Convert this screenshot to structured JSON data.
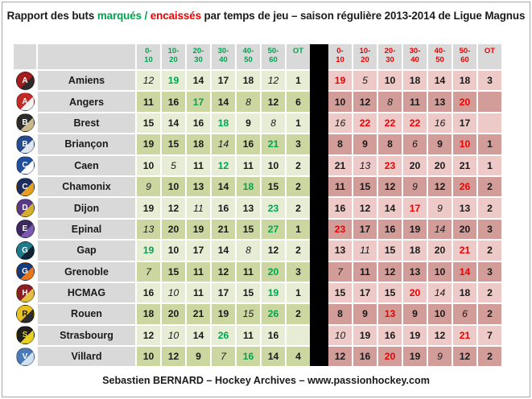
{
  "title": {
    "part1": "Rapport des buts ",
    "scored_word": "marqués /",
    "conceded_word": " encaissés",
    "part2": " par temps de jeu – saison régulière 2013-2014  de Ligue Magnus"
  },
  "colors": {
    "accent_green": "#00a550",
    "accent_red": "#f00000",
    "row_green_light": "#e7edd5",
    "row_green_dark": "#ccd6a1",
    "row_pink_light": "#edcac7",
    "row_pink_dark": "#d29d99",
    "header_gray": "#d9d9d9",
    "separator_black": "#000000"
  },
  "table": {
    "periods": [
      "0-10",
      "10-20",
      "20-30",
      "30-40",
      "40-50",
      "50-60",
      "OT"
    ],
    "teams": [
      {
        "id": "amiens",
        "name": "Amiens",
        "logo": {
          "initial": "A",
          "bg": "#a61c1c",
          "accent": "#2b2b2b",
          "fg": "#ffffff"
        },
        "scored": [
          "12",
          "19",
          "14",
          "17",
          "18",
          "12",
          "1"
        ],
        "scored_fmt": [
          "lo",
          "hi",
          "",
          "",
          "",
          "lo",
          ""
        ],
        "conceded": [
          "19",
          "5",
          "10",
          "18",
          "14",
          "18",
          "3"
        ],
        "conceded_fmt": [
          "hi",
          "lo",
          "",
          "",
          "",
          "",
          ""
        ]
      },
      {
        "id": "angers",
        "name": "Angers",
        "logo": {
          "initial": "A",
          "bg": "#c62828",
          "accent": "#f2f2f2",
          "fg": "#ffffff"
        },
        "scored": [
          "11",
          "16",
          "17",
          "14",
          "8",
          "12",
          "6"
        ],
        "scored_fmt": [
          "",
          "",
          "hi",
          "",
          "lo",
          "",
          ""
        ],
        "conceded": [
          "10",
          "12",
          "8",
          "11",
          "13",
          "20",
          ""
        ],
        "conceded_fmt": [
          "",
          "",
          "lo",
          "",
          "",
          "hi",
          ""
        ]
      },
      {
        "id": "brest",
        "name": "Brest",
        "logo": {
          "initial": "B",
          "bg": "#2b2b2b",
          "accent": "#c9b98a",
          "fg": "#ffffff"
        },
        "scored": [
          "15",
          "14",
          "16",
          "18",
          "9",
          "8",
          "1"
        ],
        "scored_fmt": [
          "",
          "",
          "",
          "hi",
          "",
          "lo",
          ""
        ],
        "conceded": [
          "16",
          "22",
          "22",
          "22",
          "16",
          "17",
          ""
        ],
        "conceded_fmt": [
          "lo",
          "hi",
          "hi",
          "hi",
          "lo",
          "",
          ""
        ]
      },
      {
        "id": "briancon",
        "name": "Briançon",
        "logo": {
          "initial": "B",
          "bg": "#274b8f",
          "accent": "#dfe6f2",
          "fg": "#ffffff"
        },
        "scored": [
          "19",
          "15",
          "18",
          "14",
          "16",
          "21",
          "3"
        ],
        "scored_fmt": [
          "",
          "",
          "",
          "lo",
          "",
          "hi",
          ""
        ],
        "conceded": [
          "8",
          "9",
          "8",
          "6",
          "9",
          "10",
          "1"
        ],
        "conceded_fmt": [
          "",
          "",
          "",
          "lo",
          "",
          "hi",
          ""
        ]
      },
      {
        "id": "caen",
        "name": "Caen",
        "logo": {
          "initial": "C",
          "bg": "#1f4f9e",
          "accent": "#ffffff",
          "fg": "#ffffff"
        },
        "scored": [
          "10",
          "5",
          "11",
          "12",
          "11",
          "10",
          "2"
        ],
        "scored_fmt": [
          "",
          "lo",
          "",
          "hi",
          "",
          "",
          ""
        ],
        "conceded": [
          "21",
          "13",
          "23",
          "20",
          "20",
          "21",
          "1"
        ],
        "conceded_fmt": [
          "",
          "lo",
          "hi",
          "",
          "",
          "",
          ""
        ]
      },
      {
        "id": "chamonix",
        "name": "Chamonix",
        "logo": {
          "initial": "C",
          "bg": "#1c2e5e",
          "accent": "#e8a020",
          "fg": "#ffffff"
        },
        "scored": [
          "9",
          "10",
          "13",
          "14",
          "18",
          "15",
          "2"
        ],
        "scored_fmt": [
          "lo",
          "",
          "",
          "",
          "hi",
          "",
          ""
        ],
        "conceded": [
          "11",
          "15",
          "12",
          "9",
          "12",
          "26",
          "2"
        ],
        "conceded_fmt": [
          "",
          "",
          "",
          "lo",
          "",
          "hi",
          ""
        ]
      },
      {
        "id": "dijon",
        "name": "Dijon",
        "logo": {
          "initial": "D",
          "bg": "#5a3a8a",
          "accent": "#d4b02a",
          "fg": "#ffffff"
        },
        "scored": [
          "19",
          "12",
          "11",
          "16",
          "13",
          "23",
          "2"
        ],
        "scored_fmt": [
          "",
          "",
          "lo",
          "",
          "",
          "hi",
          ""
        ],
        "conceded": [
          "16",
          "12",
          "14",
          "17",
          "9",
          "13",
          "2"
        ],
        "conceded_fmt": [
          "",
          "",
          "",
          "hi",
          "lo",
          "",
          ""
        ]
      },
      {
        "id": "epinal",
        "name": "Epinal",
        "logo": {
          "initial": "E",
          "bg": "#3c2a5e",
          "accent": "#7a5ab0",
          "fg": "#ffffff"
        },
        "scored": [
          "13",
          "20",
          "19",
          "21",
          "15",
          "27",
          "1"
        ],
        "scored_fmt": [
          "lo",
          "",
          "",
          "",
          "",
          "hi",
          ""
        ],
        "conceded": [
          "23",
          "17",
          "16",
          "19",
          "14",
          "20",
          "3"
        ],
        "conceded_fmt": [
          "hi",
          "",
          "",
          "",
          "lo",
          "",
          ""
        ]
      },
      {
        "id": "gap",
        "name": "Gap",
        "logo": {
          "initial": "G",
          "bg": "#1d7a8a",
          "accent": "#112233",
          "fg": "#ffffff"
        },
        "scored": [
          "19",
          "10",
          "17",
          "14",
          "8",
          "12",
          "2"
        ],
        "scored_fmt": [
          "hi",
          "",
          "",
          "",
          "lo",
          "",
          ""
        ],
        "conceded": [
          "13",
          "11",
          "15",
          "18",
          "20",
          "21",
          "2"
        ],
        "conceded_fmt": [
          "",
          "lo",
          "",
          "",
          "",
          "hi",
          ""
        ]
      },
      {
        "id": "grenoble",
        "name": "Grenoble",
        "logo": {
          "initial": "G",
          "bg": "#163a7a",
          "accent": "#e87820",
          "fg": "#ffffff"
        },
        "scored": [
          "7",
          "15",
          "11",
          "12",
          "11",
          "20",
          "3"
        ],
        "scored_fmt": [
          "lo",
          "",
          "",
          "",
          "",
          "hi",
          ""
        ],
        "conceded": [
          "7",
          "11",
          "12",
          "13",
          "10",
          "14",
          "3"
        ],
        "conceded_fmt": [
          "lo",
          "",
          "",
          "",
          "",
          "hi",
          ""
        ]
      },
      {
        "id": "hcmag",
        "name": "HCMAG",
        "logo": {
          "initial": "H",
          "bg": "#8a1e24",
          "accent": "#e0c040",
          "fg": "#ffffff"
        },
        "scored": [
          "16",
          "10",
          "11",
          "17",
          "15",
          "19",
          "1"
        ],
        "scored_fmt": [
          "",
          "lo",
          "",
          "",
          "",
          "hi",
          ""
        ],
        "conceded": [
          "15",
          "17",
          "15",
          "20",
          "14",
          "18",
          "2"
        ],
        "conceded_fmt": [
          "",
          "",
          "",
          "hi",
          "lo",
          "",
          ""
        ]
      },
      {
        "id": "rouen",
        "name": "Rouen",
        "logo": {
          "initial": "R",
          "bg": "#e8c020",
          "accent": "#2b2b2b",
          "fg": "#1a1a1a"
        },
        "scored": [
          "18",
          "20",
          "21",
          "19",
          "15",
          "26",
          "2"
        ],
        "scored_fmt": [
          "",
          "",
          "",
          "",
          "lo",
          "hi",
          ""
        ],
        "conceded": [
          "8",
          "9",
          "13",
          "9",
          "10",
          "6",
          "2"
        ],
        "conceded_fmt": [
          "",
          "",
          "hi",
          "",
          "",
          "lo",
          ""
        ]
      },
      {
        "id": "strasbourg",
        "name": "Strasbourg",
        "logo": {
          "initial": "S",
          "bg": "#1e1e1e",
          "accent": "#e8d020",
          "fg": "#e8d020"
        },
        "scored": [
          "12",
          "10",
          "14",
          "26",
          "11",
          "16",
          ""
        ],
        "scored_fmt": [
          "",
          "lo",
          "",
          "hi",
          "",
          "",
          ""
        ],
        "conceded": [
          "10",
          "19",
          "16",
          "19",
          "12",
          "21",
          "7"
        ],
        "conceded_fmt": [
          "lo",
          "",
          "",
          "",
          "",
          "hi",
          ""
        ]
      },
      {
        "id": "villard",
        "name": "Villard",
        "logo": {
          "initial": "V",
          "bg": "#4a7ab8",
          "accent": "#cfe0f0",
          "fg": "#ffffff"
        },
        "scored": [
          "10",
          "12",
          "9",
          "7",
          "16",
          "14",
          "4"
        ],
        "scored_fmt": [
          "",
          "",
          "",
          "lo",
          "hi",
          "",
          ""
        ],
        "conceded": [
          "12",
          "16",
          "20",
          "19",
          "9",
          "12",
          "2"
        ],
        "conceded_fmt": [
          "",
          "",
          "hi",
          "",
          "lo",
          "",
          ""
        ]
      }
    ]
  },
  "footer": {
    "text": "Sebastien BERNARD – Hockey Archives – www.passionhockey.com"
  }
}
